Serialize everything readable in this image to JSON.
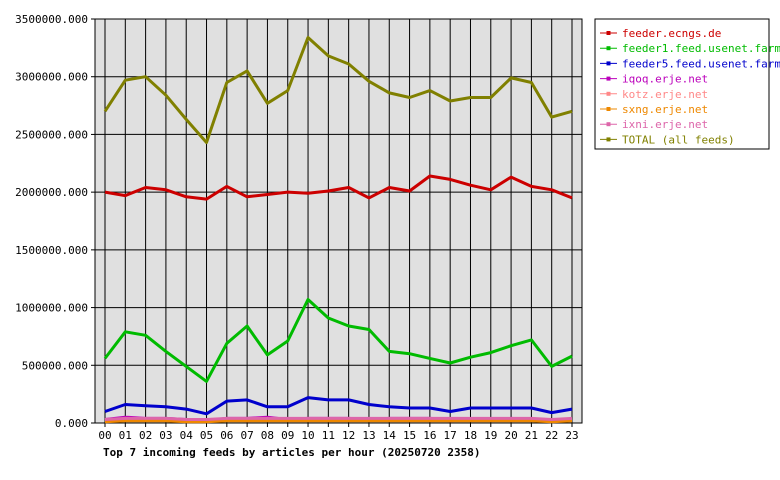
{
  "chart_data": {
    "type": "line",
    "title": "Top 7 incoming feeds by articles per hour (20250720 2358)",
    "categories": [
      "00",
      "01",
      "02",
      "03",
      "04",
      "05",
      "06",
      "07",
      "08",
      "09",
      "10",
      "11",
      "12",
      "13",
      "14",
      "15",
      "16",
      "17",
      "18",
      "19",
      "20",
      "21",
      "22",
      "23"
    ],
    "ylim": [
      0,
      3500000
    ],
    "yticks": [
      "0.000",
      "500000.000",
      "1000000.000",
      "1500000.000",
      "2000000.000",
      "2500000.000",
      "3000000.000",
      "3500000.000"
    ],
    "grid": true,
    "legend_position": "right",
    "series": [
      {
        "name": "feeder.ecngs.de",
        "color": "#cc0000",
        "values": [
          2000000,
          1970000,
          2040000,
          2020000,
          1960000,
          1940000,
          2050000,
          1960000,
          1980000,
          2000000,
          1990000,
          2010000,
          2040000,
          1950000,
          2040000,
          2010000,
          2140000,
          2110000,
          2060000,
          2020000,
          2130000,
          2050000,
          2020000,
          1950000
        ]
      },
      {
        "name": "feeder1.feed.usenet.farm",
        "color": "#00bb00",
        "values": [
          560000,
          790000,
          760000,
          620000,
          490000,
          360000,
          690000,
          840000,
          590000,
          710000,
          1070000,
          910000,
          840000,
          810000,
          620000,
          600000,
          560000,
          520000,
          570000,
          610000,
          670000,
          720000,
          490000,
          580000
        ]
      },
      {
        "name": "feeder5.feed.usenet.farm",
        "color": "#0000cc",
        "values": [
          100000,
          160000,
          150000,
          140000,
          120000,
          80000,
          190000,
          200000,
          140000,
          140000,
          220000,
          200000,
          200000,
          160000,
          140000,
          130000,
          130000,
          100000,
          130000,
          130000,
          130000,
          130000,
          90000,
          120000
        ]
      },
      {
        "name": "iqoq.erje.net",
        "color": "#bb00bb",
        "values": [
          30000,
          50000,
          40000,
          40000,
          30000,
          20000,
          40000,
          40000,
          50000,
          30000,
          40000,
          40000,
          40000,
          30000,
          40000,
          40000,
          40000,
          30000,
          30000,
          30000,
          40000,
          30000,
          30000,
          30000
        ]
      },
      {
        "name": "kotz.erje.net",
        "color": "#ff8888",
        "values": [
          20000,
          30000,
          30000,
          30000,
          20000,
          20000,
          30000,
          20000,
          30000,
          30000,
          30000,
          30000,
          30000,
          30000,
          30000,
          30000,
          30000,
          20000,
          30000,
          30000,
          30000,
          30000,
          20000,
          30000
        ]
      },
      {
        "name": "sxng.erje.net",
        "color": "#ee8800",
        "values": [
          10000,
          20000,
          20000,
          20000,
          10000,
          10000,
          20000,
          20000,
          20000,
          20000,
          20000,
          20000,
          20000,
          20000,
          20000,
          20000,
          20000,
          20000,
          20000,
          20000,
          20000,
          20000,
          10000,
          20000
        ]
      },
      {
        "name": "ixni.erje.net",
        "color": "#dd66aa",
        "values": [
          30000,
          40000,
          40000,
          40000,
          30000,
          30000,
          40000,
          40000,
          40000,
          40000,
          40000,
          40000,
          40000,
          40000,
          40000,
          40000,
          40000,
          40000,
          40000,
          40000,
          40000,
          40000,
          30000,
          40000
        ]
      },
      {
        "name": "TOTAL (all feeds)",
        "color": "#808000",
        "values": [
          2700000,
          2970000,
          3000000,
          2840000,
          2630000,
          2430000,
          2950000,
          3050000,
          2770000,
          2880000,
          3340000,
          3180000,
          3110000,
          2960000,
          2860000,
          2820000,
          2880000,
          2790000,
          2820000,
          2820000,
          2990000,
          2950000,
          2650000,
          2700000
        ]
      }
    ]
  }
}
